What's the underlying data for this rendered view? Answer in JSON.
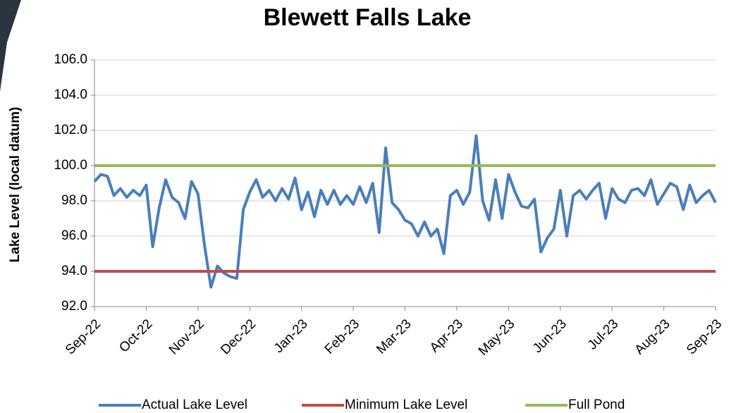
{
  "chart_data": {
    "type": "line",
    "title": "Blewett Falls Lake",
    "y_label": "Lake Level (local datum)",
    "xticks": [
      "Sep-22",
      "Oct-22",
      "Nov-22",
      "Dec-22",
      "Jan-23",
      "Feb-23",
      "Mar-23",
      "Apr-23",
      "May-23",
      "Jun-23",
      "Jul-23",
      "Aug-23",
      "Sep-23"
    ],
    "ylim": [
      92,
      106
    ],
    "yticks": [
      {
        "value": 92,
        "label": "92.0"
      },
      {
        "value": 94,
        "label": "94.0"
      },
      {
        "value": 96,
        "label": "96.0"
      },
      {
        "value": 98,
        "label": "98.0"
      },
      {
        "value": 100,
        "label": "100.0"
      },
      {
        "value": 102,
        "label": "102.0"
      },
      {
        "value": 104,
        "label": "104.0"
      },
      {
        "value": 106,
        "label": "106.0"
      }
    ],
    "grid": true,
    "legend": "bottom",
    "series": [
      {
        "name": "Actual Lake Level",
        "color": "#4a7ebb",
        "values": [
          99.1,
          99.5,
          99.4,
          98.3,
          98.7,
          98.2,
          98.6,
          98.3,
          98.9,
          95.4,
          97.6,
          99.2,
          98.2,
          97.9,
          97.0,
          99.1,
          98.4,
          95.5,
          93.1,
          94.3,
          93.9,
          93.7,
          93.6,
          97.5,
          98.5,
          99.2,
          98.2,
          98.6,
          98.0,
          98.7,
          98.1,
          99.3,
          97.5,
          98.5,
          97.1,
          98.6,
          97.8,
          98.6,
          97.8,
          98.3,
          97.8,
          98.8,
          97.9,
          99.0,
          96.2,
          101.0,
          97.9,
          97.5,
          96.9,
          96.7,
          96.0,
          96.8,
          96.0,
          96.4,
          95.0,
          98.3,
          98.6,
          97.8,
          98.5,
          101.7,
          98.0,
          96.9,
          99.2,
          97.0,
          99.5,
          98.5,
          97.7,
          97.6,
          98.1,
          95.1,
          95.9,
          96.4,
          98.6,
          96.0,
          98.3,
          98.6,
          98.1,
          98.6,
          99.0,
          97.0,
          98.7,
          98.1,
          97.9,
          98.6,
          98.7,
          98.3,
          99.2,
          97.8,
          98.4,
          99.0,
          98.8,
          97.5,
          98.9,
          97.9,
          98.3,
          98.6,
          97.9
        ]
      },
      {
        "name": "Minimum Lake Level",
        "color": "#be4b48",
        "value": 94
      },
      {
        "name": "Full Pond",
        "color": "#98b954",
        "value": 100
      }
    ]
  }
}
